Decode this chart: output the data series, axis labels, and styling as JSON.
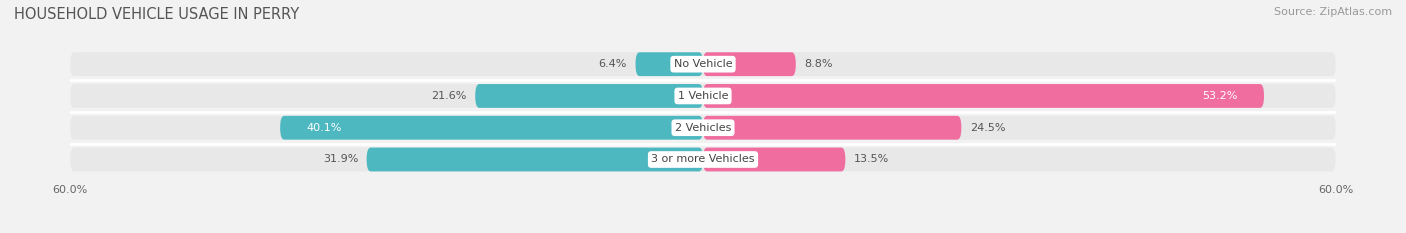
{
  "title": "HOUSEHOLD VEHICLE USAGE IN PERRY",
  "source": "Source: ZipAtlas.com",
  "categories": [
    "No Vehicle",
    "1 Vehicle",
    "2 Vehicles",
    "3 or more Vehicles"
  ],
  "owner_values": [
    6.4,
    21.6,
    40.1,
    31.9
  ],
  "renter_values": [
    8.8,
    53.2,
    24.5,
    13.5
  ],
  "owner_color": "#4db8c0",
  "renter_color": "#f06da0",
  "renter_light_color": "#f9c2d8",
  "owner_light_color": "#b2e0e4",
  "axis_max": 60.0,
  "x_tick_labels": [
    "60.0%",
    "60.0%"
  ],
  "bg_color": "#f2f2f2",
  "row_bg_color": "#e8e8e8",
  "title_fontsize": 10.5,
  "source_fontsize": 8,
  "label_fontsize": 8,
  "category_fontsize": 8,
  "bar_height": 0.75
}
